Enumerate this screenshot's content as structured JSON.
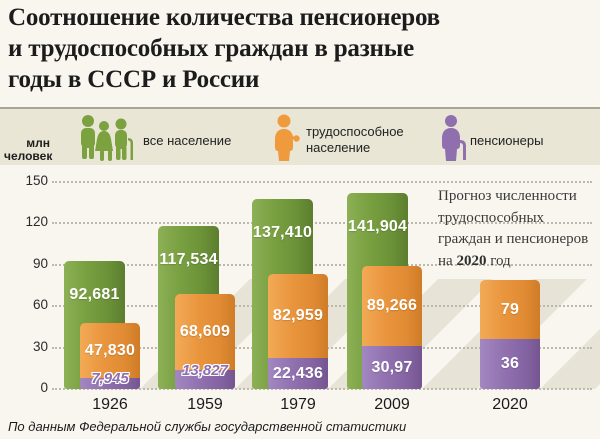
{
  "title": {
    "line1": "Соотношение количества пенсионеров",
    "line2": "и трудоспособных граждан в разные",
    "line3": "годы в СССР и России"
  },
  "y_axis": {
    "unit_line1": "млн",
    "unit_line2": "человек",
    "ticks": [
      150,
      120,
      90,
      60,
      30,
      0
    ]
  },
  "legend": {
    "items": [
      {
        "id": "all-population",
        "label": "все население",
        "color": "#7ca23f"
      },
      {
        "id": "working-population",
        "label_line1": "трудоспособное",
        "label_line2": "население",
        "color": "#f09a3e"
      },
      {
        "id": "pensioners",
        "label": "пенсионеры",
        "color": "#8f6fae"
      }
    ]
  },
  "annotation": {
    "line1": "Прогноз численности",
    "line2": "трудоспособных",
    "line3": "граждан и пенсионеров",
    "line4_prefix": "на ",
    "line4_bold": "2020",
    "line4_suffix": " год"
  },
  "source": "По данным Федеральной службы государственной статистики",
  "chart_data": {
    "type": "bar",
    "title": "Соотношение количества пенсионеров и трудоспособных граждан в разные годы в СССР и России",
    "ylabel": "млн человек",
    "ylim": [
      0,
      150
    ],
    "grid": true,
    "categories": [
      "1926",
      "1959",
      "1979",
      "2009",
      "2020"
    ],
    "series": [
      {
        "name": "все население",
        "color": "#73993e",
        "values": [
          92.681,
          117.534,
          137.41,
          141.904,
          null
        ],
        "labels": [
          "92,681",
          "117,534",
          "137,410",
          "141,904",
          null
        ]
      },
      {
        "name": "трудоспособное население",
        "color": "#e8963f",
        "values": [
          47.83,
          68.609,
          82.959,
          89.266,
          79
        ],
        "labels": [
          "47,830",
          "68,609",
          "82,959",
          "89,266",
          "79"
        ]
      },
      {
        "name": "пенсионеры",
        "color": "#8e6ead",
        "values": [
          7.945,
          13.827,
          22.436,
          30.97,
          36
        ],
        "labels": [
          "7,945",
          "13,827",
          "22,436",
          "30,97",
          "36"
        ]
      }
    ]
  }
}
